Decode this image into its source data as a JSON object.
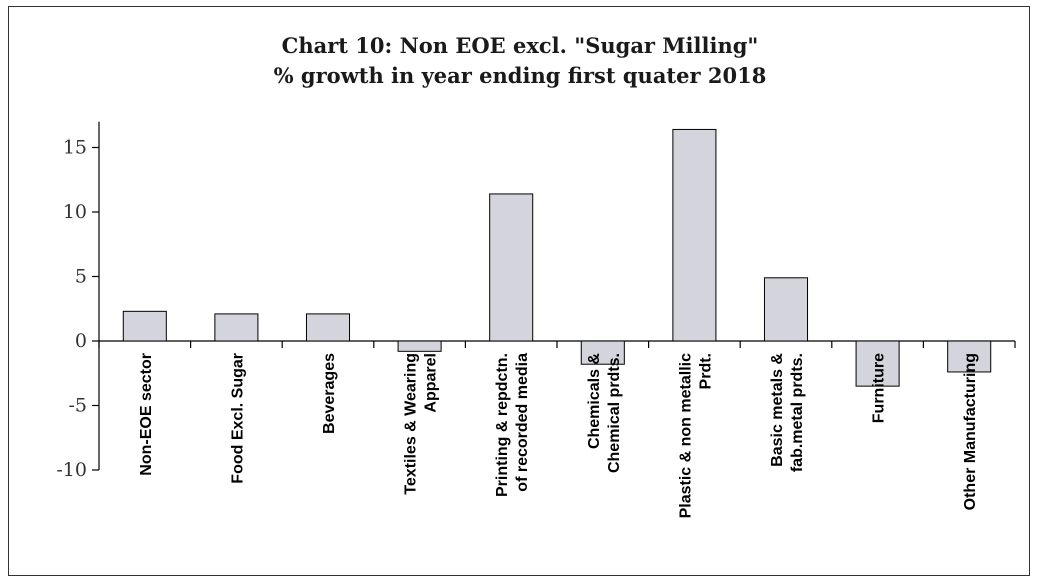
{
  "chart_data": {
    "type": "bar",
    "title": "Chart 10: Non EOE excl. \"Sugar Milling\"",
    "subtitle": "% growth in year ending first quater 2018",
    "xlabel": "",
    "ylabel": "",
    "ylim": [
      -10,
      17
    ],
    "yticks": [
      -10,
      -5,
      0,
      5,
      10,
      15
    ],
    "grid": false,
    "bar_color": "#d4d4dc",
    "bar_edge_color": "#000000",
    "categories": [
      [
        "Non-EOE sector"
      ],
      [
        "Food Excl. Sugar"
      ],
      [
        "Beverages"
      ],
      [
        "Textiles & Wearing",
        "Apparel"
      ],
      [
        "Printing & repdctn.",
        "of recorded media"
      ],
      [
        "Chemicals &",
        "Chemical prdts."
      ],
      [
        "Plastic & non metallic",
        "Prdt."
      ],
      [
        "Basic metals &",
        "fab.metal prdts."
      ],
      [
        "Furniture"
      ],
      [
        "Other Manufacturing"
      ]
    ],
    "values": [
      2.3,
      2.1,
      2.1,
      -0.8,
      11.4,
      -1.8,
      16.4,
      4.9,
      -3.5,
      -2.4
    ]
  }
}
